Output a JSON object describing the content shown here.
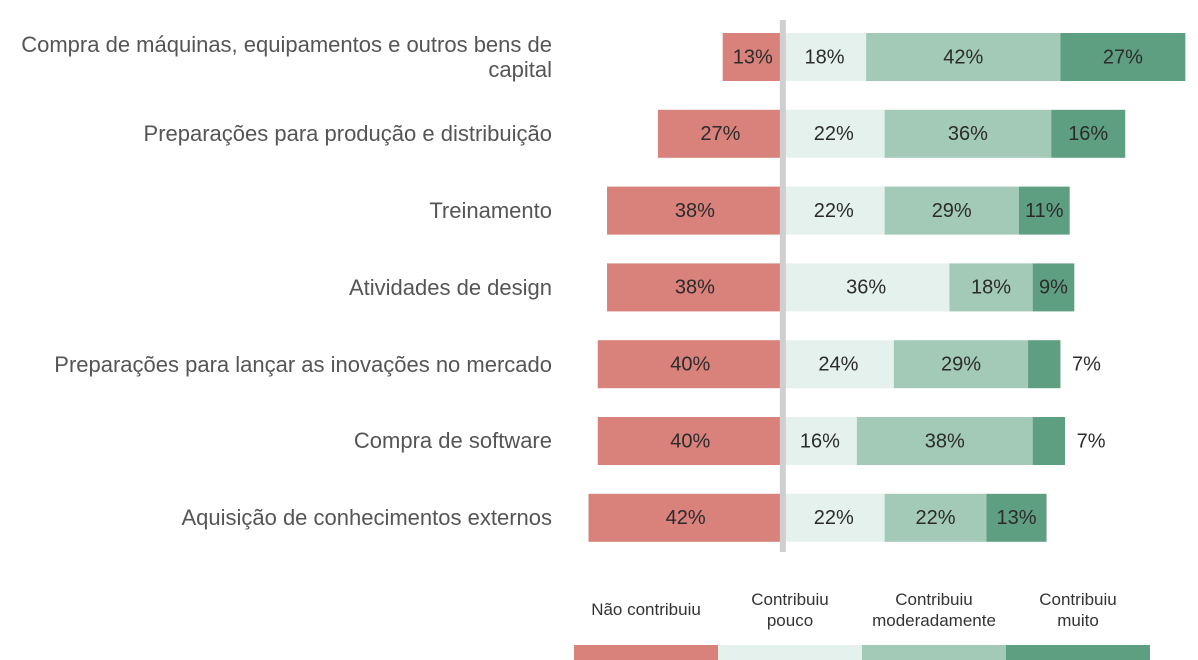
{
  "chart_data": {
    "type": "diverging_bar",
    "categories": [
      "Compra de máquinas, equipamentos e outros bens de capital",
      "Preparações para produção e distribuição",
      "Treinamento",
      "Atividades de design",
      "Preparações para lançar as inovações no mercado",
      "Compra de software",
      "Aquisição de conhecimentos externos"
    ],
    "series": [
      {
        "name": "Não contribuiu",
        "color": "#d9817b",
        "values": [
          13,
          27,
          38,
          38,
          40,
          40,
          42
        ],
        "value_labels": [
          "13%",
          "27%",
          "38%",
          "38%",
          "40%",
          "40%",
          "42%"
        ]
      },
      {
        "name": "Contribuiu pouco",
        "color": "#e4f1ec",
        "values": [
          18,
          22,
          22,
          36,
          24,
          16,
          22
        ],
        "value_labels": [
          "18%",
          "22%",
          "22%",
          "36%",
          "24%",
          "16%",
          "22%"
        ]
      },
      {
        "name": "Contribuiu moderadamente",
        "color": "#a2cab7",
        "values": [
          42,
          36,
          29,
          18,
          29,
          38,
          22
        ],
        "value_labels": [
          "42%",
          "36%",
          "29%",
          "18%",
          "29%",
          "38%",
          "22%"
        ]
      },
      {
        "name": "Contribuiu muito",
        "color": "#5f9f81",
        "values": [
          27,
          16,
          11,
          9,
          7,
          7,
          13
        ],
        "value_labels": [
          "27%",
          "16%",
          "11%",
          "9%",
          "7%",
          "7%",
          "13%"
        ]
      }
    ],
    "xlim": [
      -46,
      88
    ]
  }
}
